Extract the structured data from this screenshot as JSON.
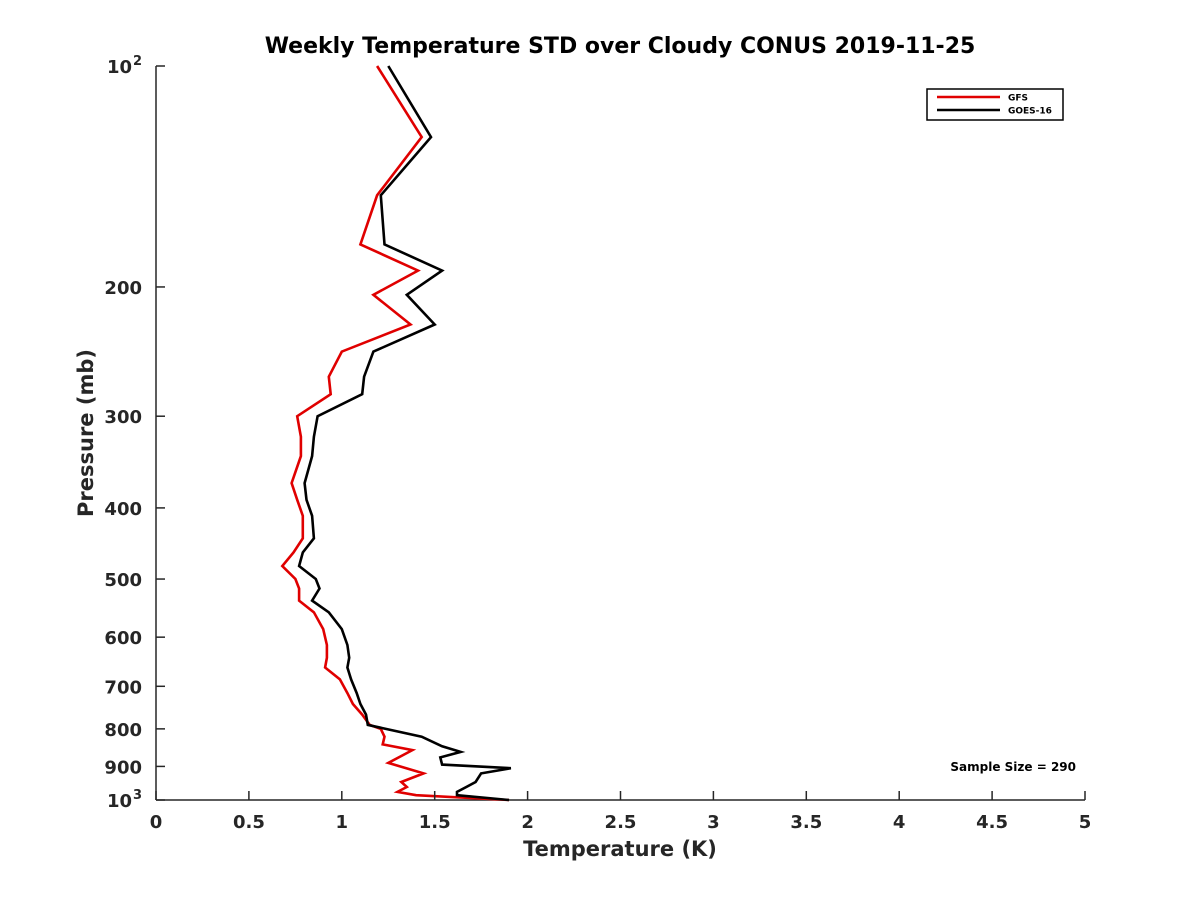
{
  "chart_data": {
    "type": "line",
    "title": "Weekly Temperature STD over Cloudy CONUS 2019-11-25",
    "xlabel": "Temperature (K)",
    "ylabel": "Pressure (mb)",
    "xlim": [
      0,
      5
    ],
    "ylim": [
      100,
      1000
    ],
    "y_scale": "log",
    "y_reversed": true,
    "grid": false,
    "legend_position": "top-right",
    "x_ticks": [
      {
        "value": 0,
        "label": "0"
      },
      {
        "value": 0.5,
        "label": "0.5"
      },
      {
        "value": 1,
        "label": "1"
      },
      {
        "value": 1.5,
        "label": "1.5"
      },
      {
        "value": 2,
        "label": "2"
      },
      {
        "value": 2.5,
        "label": "2.5"
      },
      {
        "value": 3,
        "label": "3"
      },
      {
        "value": 3.5,
        "label": "3.5"
      },
      {
        "value": 4,
        "label": "4"
      },
      {
        "value": 4.5,
        "label": "4.5"
      },
      {
        "value": 5,
        "label": "5"
      }
    ],
    "y_ticks": [
      {
        "value": 100,
        "label": "10",
        "exponent": "2"
      },
      {
        "value": 200,
        "label": "200"
      },
      {
        "value": 300,
        "label": "300"
      },
      {
        "value": 400,
        "label": "400"
      },
      {
        "value": 500,
        "label": "500"
      },
      {
        "value": 600,
        "label": "600"
      },
      {
        "value": 700,
        "label": "700"
      },
      {
        "value": 800,
        "label": "800"
      },
      {
        "value": 900,
        "label": "900"
      },
      {
        "value": 1000,
        "label": "10",
        "exponent": "3"
      }
    ],
    "series": [
      {
        "name": "GFS",
        "color": "#e00000",
        "points": [
          [
            1.19,
            100
          ],
          [
            1.43,
            125
          ],
          [
            1.19,
            150
          ],
          [
            1.1,
            175
          ],
          [
            1.41,
            190
          ],
          [
            1.17,
            205
          ],
          [
            1.37,
            225
          ],
          [
            1.0,
            245
          ],
          [
            0.93,
            265
          ],
          [
            0.94,
            280
          ],
          [
            0.76,
            300
          ],
          [
            0.78,
            320
          ],
          [
            0.78,
            340
          ],
          [
            0.73,
            370
          ],
          [
            0.76,
            390
          ],
          [
            0.79,
            410
          ],
          [
            0.79,
            440
          ],
          [
            0.74,
            460
          ],
          [
            0.68,
            480
          ],
          [
            0.75,
            500
          ],
          [
            0.77,
            515
          ],
          [
            0.77,
            535
          ],
          [
            0.85,
            555
          ],
          [
            0.9,
            585
          ],
          [
            0.92,
            615
          ],
          [
            0.92,
            640
          ],
          [
            0.91,
            660
          ],
          [
            0.99,
            685
          ],
          [
            1.03,
            715
          ],
          [
            1.06,
            740
          ],
          [
            1.11,
            765
          ],
          [
            1.15,
            790
          ],
          [
            1.21,
            800
          ],
          [
            1.23,
            820
          ],
          [
            1.22,
            840
          ],
          [
            1.38,
            855
          ],
          [
            1.25,
            890
          ],
          [
            1.44,
            920
          ],
          [
            1.32,
            945
          ],
          [
            1.35,
            960
          ],
          [
            1.3,
            975
          ],
          [
            1.4,
            985
          ],
          [
            1.9,
            1000
          ]
        ]
      },
      {
        "name": "GOES-16",
        "color": "#000000",
        "points": [
          [
            1.25,
            100
          ],
          [
            1.48,
            125
          ],
          [
            1.21,
            150
          ],
          [
            1.23,
            175
          ],
          [
            1.54,
            190
          ],
          [
            1.35,
            205
          ],
          [
            1.5,
            225
          ],
          [
            1.17,
            245
          ],
          [
            1.12,
            265
          ],
          [
            1.11,
            280
          ],
          [
            0.87,
            300
          ],
          [
            0.85,
            320
          ],
          [
            0.84,
            340
          ],
          [
            0.8,
            370
          ],
          [
            0.81,
            390
          ],
          [
            0.84,
            410
          ],
          [
            0.85,
            440
          ],
          [
            0.79,
            460
          ],
          [
            0.77,
            480
          ],
          [
            0.86,
            500
          ],
          [
            0.88,
            515
          ],
          [
            0.84,
            535
          ],
          [
            0.93,
            555
          ],
          [
            1.0,
            585
          ],
          [
            1.03,
            615
          ],
          [
            1.04,
            640
          ],
          [
            1.03,
            660
          ],
          [
            1.05,
            685
          ],
          [
            1.08,
            715
          ],
          [
            1.1,
            740
          ],
          [
            1.13,
            765
          ],
          [
            1.14,
            790
          ],
          [
            1.43,
            820
          ],
          [
            1.54,
            845
          ],
          [
            1.64,
            860
          ],
          [
            1.53,
            875
          ],
          [
            1.54,
            895
          ],
          [
            1.91,
            905
          ],
          [
            1.75,
            920
          ],
          [
            1.72,
            945
          ],
          [
            1.67,
            960
          ],
          [
            1.62,
            975
          ],
          [
            1.62,
            985
          ],
          [
            1.9,
            1000
          ]
        ]
      }
    ],
    "annotations": [
      {
        "text": "Sample Size = 290"
      }
    ]
  }
}
